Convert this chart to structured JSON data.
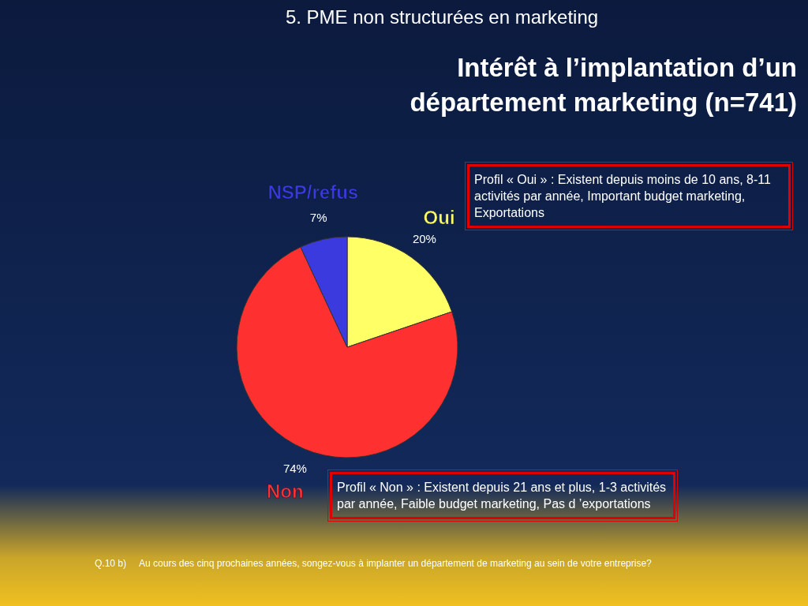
{
  "chart_data": {
    "type": "pie",
    "subtitle": "5. PME non structurées en marketing",
    "title": "Intérêt à l’implantation d’un département marketing (n=741)",
    "categories": [
      "Oui",
      "Non",
      "NSP/refus"
    ],
    "values": [
      20,
      74,
      7
    ],
    "colors": [
      "#ffff66",
      "#ff3030",
      "#3a3adf"
    ],
    "value_labels": [
      "20%",
      "74%",
      "7%"
    ],
    "annotations": [
      "Profil « Oui » : Existent depuis moins de 10 ans, 8-11 activités par année, Important budget marketing, Exportations",
      "Profil « Non » : Existent depuis 21 ans et plus, 1-3 activités par année, Faible budget marketing, Pas d ’exportations",
      "Q.10 b)     Au cours des cinq prochaines années, songez-vous à implanter un département de marketing au sein de votre entreprise?"
    ]
  }
}
